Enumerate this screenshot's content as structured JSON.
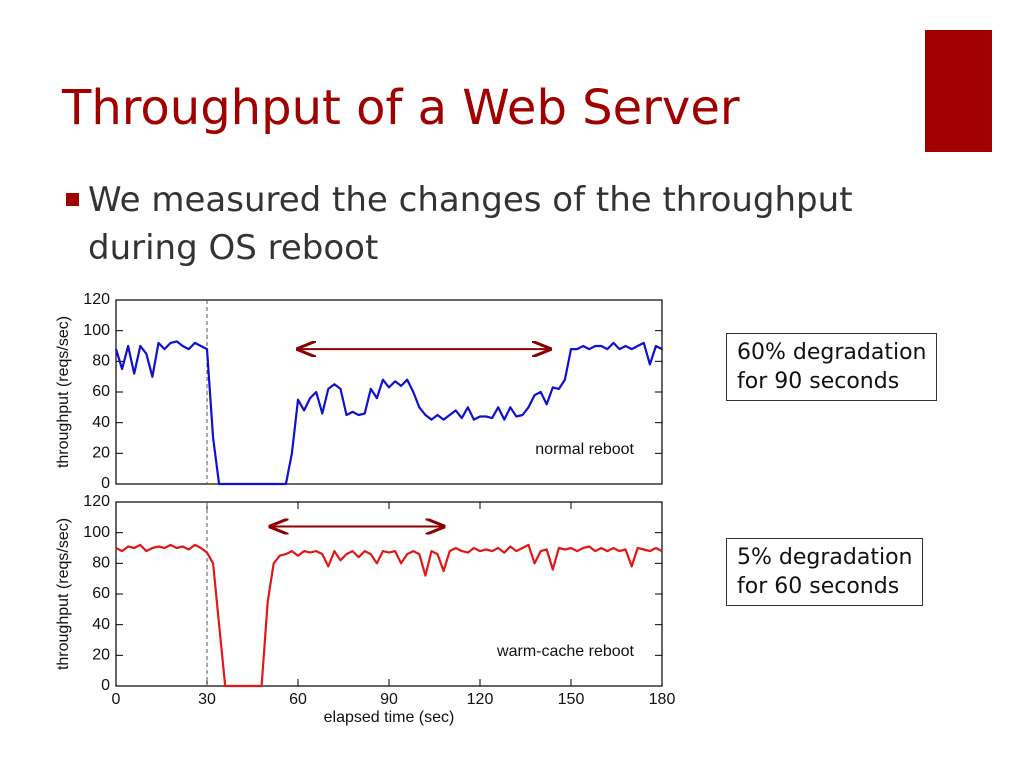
{
  "header": {
    "title": "Throughput of a Web Server"
  },
  "bullets": [
    [
      "We measured the changes of the throughput",
      "during OS reboot"
    ]
  ],
  "chart_data": [
    {
      "type": "line",
      "ylabel": "throughput (reqs/sec)",
      "annotation": "normal reboot",
      "callout": [
        "60% degradation",
        "for 90 seconds"
      ],
      "x": [
        0,
        2,
        4,
        6,
        8,
        10,
        12,
        14,
        16,
        18,
        20,
        22,
        24,
        26,
        28,
        30,
        32,
        34,
        36,
        38,
        40,
        42,
        44,
        46,
        48,
        50,
        52,
        54,
        56,
        58,
        60,
        62,
        64,
        66,
        68,
        70,
        72,
        74,
        76,
        78,
        80,
        82,
        84,
        86,
        88,
        90,
        92,
        94,
        96,
        98,
        100,
        102,
        104,
        106,
        108,
        110,
        112,
        114,
        116,
        118,
        120,
        122,
        124,
        126,
        128,
        130,
        132,
        134,
        136,
        138,
        140,
        142,
        144,
        146,
        148,
        150,
        152,
        154,
        156,
        158,
        160,
        162,
        164,
        166,
        168,
        170,
        172,
        174,
        176,
        178,
        180
      ],
      "series": [
        {
          "color": "#1010d0",
          "values": [
            88,
            75,
            90,
            72,
            90,
            85,
            70,
            92,
            88,
            92,
            93,
            90,
            88,
            92,
            90,
            88,
            30,
            0,
            0,
            0,
            0,
            0,
            0,
            0,
            0,
            0,
            0,
            0,
            0,
            20,
            55,
            48,
            56,
            60,
            46,
            62,
            65,
            62,
            45,
            47,
            45,
            46,
            62,
            56,
            68,
            63,
            67,
            64,
            68,
            60,
            50,
            45,
            42,
            45,
            42,
            45,
            48,
            43,
            50,
            42,
            44,
            44,
            43,
            50,
            42,
            50,
            44,
            45,
            50,
            58,
            60,
            52,
            63,
            62,
            68,
            88,
            88,
            90,
            88,
            90,
            90,
            88,
            92,
            88,
            90,
            88,
            90,
            92,
            78,
            90,
            88
          ]
        }
      ],
      "xlim": [
        0,
        180
      ],
      "ylim": [
        0,
        120
      ],
      "yticks": [
        0,
        20,
        40,
        60,
        80,
        100,
        120
      ],
      "vline": 30,
      "arrow": {
        "x": [
          60,
          143
        ],
        "y": 88
      }
    },
    {
      "type": "line",
      "ylabel": "throughput (reqs/sec)",
      "xlabel": "elapsed time (sec)",
      "annotation": "warm-cache reboot",
      "callout": [
        "5% degradation",
        "for 60 seconds"
      ],
      "x": [
        0,
        2,
        4,
        6,
        8,
        10,
        12,
        14,
        16,
        18,
        20,
        22,
        24,
        26,
        28,
        30,
        32,
        34,
        36,
        38,
        40,
        42,
        44,
        46,
        48,
        50,
        52,
        54,
        56,
        58,
        60,
        62,
        64,
        66,
        68,
        70,
        72,
        74,
        76,
        78,
        80,
        82,
        84,
        86,
        88,
        90,
        92,
        94,
        96,
        98,
        100,
        102,
        104,
        106,
        108,
        110,
        112,
        114,
        116,
        118,
        120,
        122,
        124,
        126,
        128,
        130,
        132,
        134,
        136,
        138,
        140,
        142,
        144,
        146,
        148,
        150,
        152,
        154,
        156,
        158,
        160,
        162,
        164,
        166,
        168,
        170,
        172,
        174,
        176,
        178,
        180
      ],
      "series": [
        {
          "color": "#e01818",
          "values": [
            90,
            88,
            91,
            90,
            92,
            88,
            90,
            91,
            90,
            92,
            90,
            91,
            89,
            92,
            90,
            87,
            80,
            40,
            0,
            0,
            0,
            0,
            0,
            0,
            0,
            55,
            80,
            85,
            86,
            88,
            85,
            88,
            87,
            88,
            86,
            78,
            88,
            82,
            86,
            88,
            84,
            88,
            86,
            80,
            88,
            87,
            88,
            80,
            86,
            88,
            86,
            72,
            88,
            86,
            75,
            88,
            90,
            88,
            87,
            90,
            88,
            89,
            88,
            90,
            87,
            91,
            88,
            90,
            92,
            80,
            88,
            89,
            76,
            90,
            89,
            90,
            88,
            90,
            91,
            88,
            90,
            88,
            90,
            88,
            89,
            78,
            90,
            89,
            88,
            90,
            88
          ]
        }
      ],
      "xlim": [
        0,
        180
      ],
      "ylim": [
        0,
        120
      ],
      "xticks": [
        0,
        30,
        60,
        90,
        120,
        150,
        180
      ],
      "yticks": [
        0,
        20,
        40,
        60,
        80,
        100,
        120
      ],
      "vline": 30,
      "arrow": {
        "x": [
          51,
          108
        ],
        "y": 104
      }
    }
  ]
}
